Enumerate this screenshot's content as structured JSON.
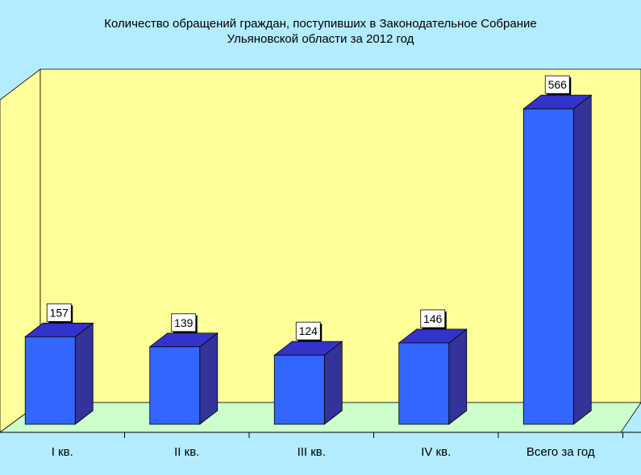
{
  "chart_data": {
    "type": "bar",
    "title_line1": "Количество обращений граждан, поступивших в Законодательное Собрание",
    "title_line2": "Ульяновской области за 2012 год",
    "categories": [
      "I кв.",
      "II кв.",
      "III кв.",
      "IV кв.",
      "Всего за год"
    ],
    "values": [
      157,
      139,
      124,
      146,
      566
    ],
    "data_labels": [
      "157",
      "139",
      "124",
      "146",
      "566"
    ],
    "xlabel": "",
    "ylabel": "",
    "ylim": [
      0,
      600
    ],
    "grid": false,
    "legend": "none",
    "style": "3d-column",
    "colors": {
      "background": "#b3ecff",
      "back_wall": "#ffff99",
      "side_wall": "#ffff99",
      "floor": "#ccffcc",
      "bar_front": "#3366ff",
      "bar_side": "#333399",
      "bar_top": "#3333cc",
      "axis": "#000000"
    }
  }
}
